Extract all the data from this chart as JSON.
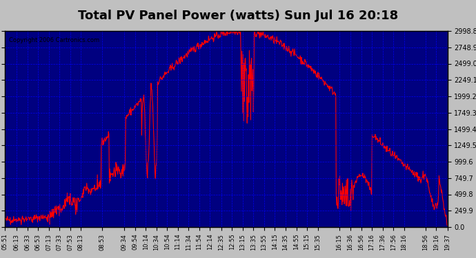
{
  "title": "Total PV Panel Power (watts) Sun Jul 16 20:18",
  "copyright": "Copyright 2006 Cartronics.com",
  "bg_color": "#000080",
  "plot_bg_color": "#000080",
  "line_color": "#FF0000",
  "grid_color": "#0000FF",
  "text_color": "#FFFFFF",
  "title_color": "#000000",
  "title_bg": "#C0C0C0",
  "y_ticks": [
    0.0,
    249.9,
    499.8,
    749.7,
    999.6,
    1249.5,
    1499.4,
    1749.3,
    1999.2,
    2249.1,
    2499.0,
    2748.9,
    2998.8
  ],
  "x_labels": [
    "05:51",
    "06:13",
    "06:33",
    "06:53",
    "07:13",
    "07:33",
    "07:53",
    "08:13",
    "08:53",
    "09:34",
    "09:54",
    "10:14",
    "10:34",
    "10:54",
    "11:14",
    "11:34",
    "11:54",
    "12:14",
    "12:35",
    "12:55",
    "13:15",
    "13:35",
    "13:55",
    "14:15",
    "14:35",
    "14:55",
    "15:15",
    "15:35",
    "16:15",
    "16:36",
    "16:56",
    "17:16",
    "17:36",
    "17:56",
    "18:16",
    "18:56",
    "19:16",
    "19:37"
  ],
  "figsize": [
    6.9,
    3.75
  ],
  "dpi": 100
}
